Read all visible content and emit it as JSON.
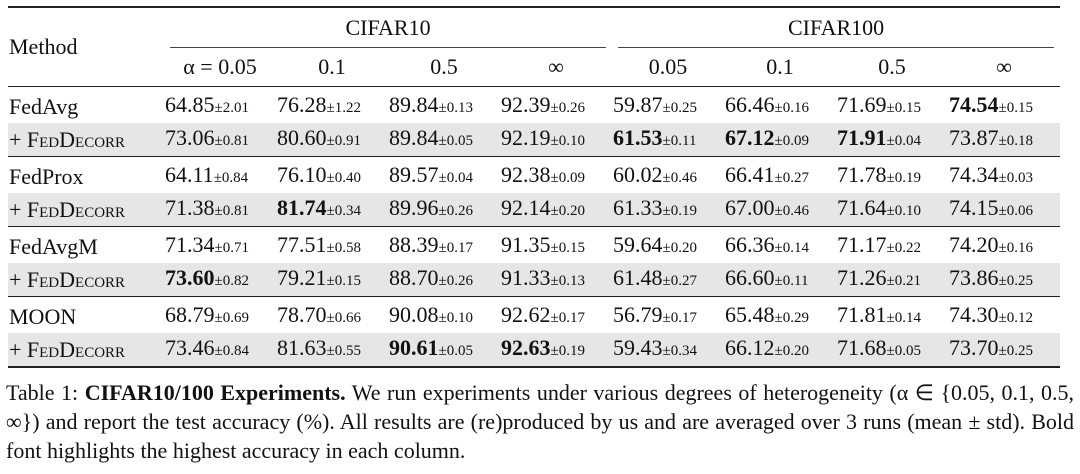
{
  "table": {
    "header": {
      "method": "Method",
      "groups": [
        "CIFAR10",
        "CIFAR100"
      ],
      "columns": [
        "α = 0.05",
        "0.1",
        "0.5",
        "∞",
        "0.05",
        "0.1",
        "0.5",
        "∞"
      ]
    },
    "rows": [
      {
        "method": "FedAvg",
        "cells": [
          {
            "mean": "64.85",
            "std": "±2.01",
            "bold": false
          },
          {
            "mean": "76.28",
            "std": "±1.22",
            "bold": false
          },
          {
            "mean": "89.84",
            "std": "±0.13",
            "bold": false
          },
          {
            "mean": "92.39",
            "std": "±0.26",
            "bold": false
          },
          {
            "mean": "59.87",
            "std": "±0.25",
            "bold": false
          },
          {
            "mean": "66.46",
            "std": "±0.16",
            "bold": false
          },
          {
            "mean": "71.69",
            "std": "±0.15",
            "bold": false
          },
          {
            "mean": "74.54",
            "std": "±0.15",
            "bold": true
          }
        ]
      },
      {
        "method": "+ FedDecorr",
        "cells": [
          {
            "mean": "73.06",
            "std": "±0.81",
            "bold": false
          },
          {
            "mean": "80.60",
            "std": "±0.91",
            "bold": false
          },
          {
            "mean": "89.84",
            "std": "±0.05",
            "bold": false
          },
          {
            "mean": "92.19",
            "std": "±0.10",
            "bold": false
          },
          {
            "mean": "61.53",
            "std": "±0.11",
            "bold": true
          },
          {
            "mean": "67.12",
            "std": "±0.09",
            "bold": true
          },
          {
            "mean": "71.91",
            "std": "±0.04",
            "bold": true
          },
          {
            "mean": "73.87",
            "std": "±0.18",
            "bold": false
          }
        ]
      },
      {
        "method": "FedProx",
        "cells": [
          {
            "mean": "64.11",
            "std": "±0.84",
            "bold": false
          },
          {
            "mean": "76.10",
            "std": "±0.40",
            "bold": false
          },
          {
            "mean": "89.57",
            "std": "±0.04",
            "bold": false
          },
          {
            "mean": "92.38",
            "std": "±0.09",
            "bold": false
          },
          {
            "mean": "60.02",
            "std": "±0.46",
            "bold": false
          },
          {
            "mean": "66.41",
            "std": "±0.27",
            "bold": false
          },
          {
            "mean": "71.78",
            "std": "±0.19",
            "bold": false
          },
          {
            "mean": "74.34",
            "std": "±0.03",
            "bold": false
          }
        ]
      },
      {
        "method": "+ FedDecorr",
        "cells": [
          {
            "mean": "71.38",
            "std": "±0.81",
            "bold": false
          },
          {
            "mean": "81.74",
            "std": "±0.34",
            "bold": true
          },
          {
            "mean": "89.96",
            "std": "±0.26",
            "bold": false
          },
          {
            "mean": "92.14",
            "std": "±0.20",
            "bold": false
          },
          {
            "mean": "61.33",
            "std": "±0.19",
            "bold": false
          },
          {
            "mean": "67.00",
            "std": "±0.46",
            "bold": false
          },
          {
            "mean": "71.64",
            "std": "±0.10",
            "bold": false
          },
          {
            "mean": "74.15",
            "std": "±0.06",
            "bold": false
          }
        ]
      },
      {
        "method": "FedAvgM",
        "cells": [
          {
            "mean": "71.34",
            "std": "±0.71",
            "bold": false
          },
          {
            "mean": "77.51",
            "std": "±0.58",
            "bold": false
          },
          {
            "mean": "88.39",
            "std": "±0.17",
            "bold": false
          },
          {
            "mean": "91.35",
            "std": "±0.15",
            "bold": false
          },
          {
            "mean": "59.64",
            "std": "±0.20",
            "bold": false
          },
          {
            "mean": "66.36",
            "std": "±0.14",
            "bold": false
          },
          {
            "mean": "71.17",
            "std": "±0.22",
            "bold": false
          },
          {
            "mean": "74.20",
            "std": "±0.16",
            "bold": false
          }
        ]
      },
      {
        "method": "+ FedDecorr",
        "cells": [
          {
            "mean": "73.60",
            "std": "±0.82",
            "bold": true
          },
          {
            "mean": "79.21",
            "std": "±0.15",
            "bold": false
          },
          {
            "mean": "88.70",
            "std": "±0.26",
            "bold": false
          },
          {
            "mean": "91.33",
            "std": "±0.13",
            "bold": false
          },
          {
            "mean": "61.48",
            "std": "±0.27",
            "bold": false
          },
          {
            "mean": "66.60",
            "std": "±0.11",
            "bold": false
          },
          {
            "mean": "71.26",
            "std": "±0.21",
            "bold": false
          },
          {
            "mean": "73.86",
            "std": "±0.25",
            "bold": false
          }
        ]
      },
      {
        "method": "MOON",
        "cells": [
          {
            "mean": "68.79",
            "std": "±0.69",
            "bold": false
          },
          {
            "mean": "78.70",
            "std": "±0.66",
            "bold": false
          },
          {
            "mean": "90.08",
            "std": "±0.10",
            "bold": false
          },
          {
            "mean": "92.62",
            "std": "±0.17",
            "bold": false
          },
          {
            "mean": "56.79",
            "std": "±0.17",
            "bold": false
          },
          {
            "mean": "65.48",
            "std": "±0.29",
            "bold": false
          },
          {
            "mean": "71.81",
            "std": "±0.14",
            "bold": false
          },
          {
            "mean": "74.30",
            "std": "±0.12",
            "bold": false
          }
        ]
      },
      {
        "method": "+ FedDecorr",
        "cells": [
          {
            "mean": "73.46",
            "std": "±0.84",
            "bold": false
          },
          {
            "mean": "81.63",
            "std": "±0.55",
            "bold": false
          },
          {
            "mean": "90.61",
            "std": "±0.05",
            "bold": true
          },
          {
            "mean": "92.63",
            "std": "±0.19",
            "bold": true
          },
          {
            "mean": "59.43",
            "std": "±0.34",
            "bold": false
          },
          {
            "mean": "66.12",
            "std": "±0.20",
            "bold": false
          },
          {
            "mean": "71.68",
            "std": "±0.05",
            "bold": false
          },
          {
            "mean": "73.70",
            "std": "±0.25",
            "bold": false
          }
        ]
      }
    ]
  },
  "caption": {
    "label": "Table 1:",
    "title": "CIFAR10/100 Experiments.",
    "text": "We run experiments under various degrees of heterogeneity (α ∈ {0.05, 0.1, 0.5, ∞}) and report the test accuracy (%). All results are (re)produced by us and are averaged over 3 runs (mean ± std). Bold font highlights the highest accuracy in each column."
  }
}
